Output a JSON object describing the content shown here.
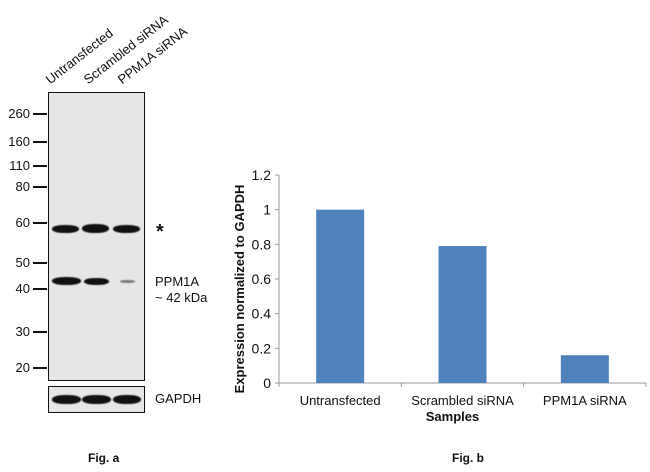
{
  "fig_a": {
    "caption": "Fig. a",
    "lanes": [
      "Untransfected",
      "Scrambled siRNA",
      "PPM1A siRNA"
    ],
    "markers": [
      "260",
      "160",
      "110",
      "80",
      "60",
      "50",
      "40",
      "30",
      "20"
    ],
    "asterisk": "*",
    "target_label": "PPM1A",
    "target_size": "~ 42 kDa",
    "loading_control": "GAPDH"
  },
  "fig_b": {
    "caption": "Fig. b"
  },
  "chart_data": {
    "type": "bar",
    "title": "",
    "categories": [
      "Untransfected",
      "Scrambled siRNA",
      "PPM1A siRNA"
    ],
    "values": [
      1.0,
      0.79,
      0.16
    ],
    "xlabel": "Samples",
    "ylabel": "Expression normalized to GAPDH",
    "ylim": [
      0,
      1.2
    ],
    "yticks": [
      "0",
      "0.2",
      "0.4",
      "0.6",
      "0.8",
      "1",
      "1.2"
    ],
    "grid": false,
    "bar_color": "#4f81bd"
  }
}
